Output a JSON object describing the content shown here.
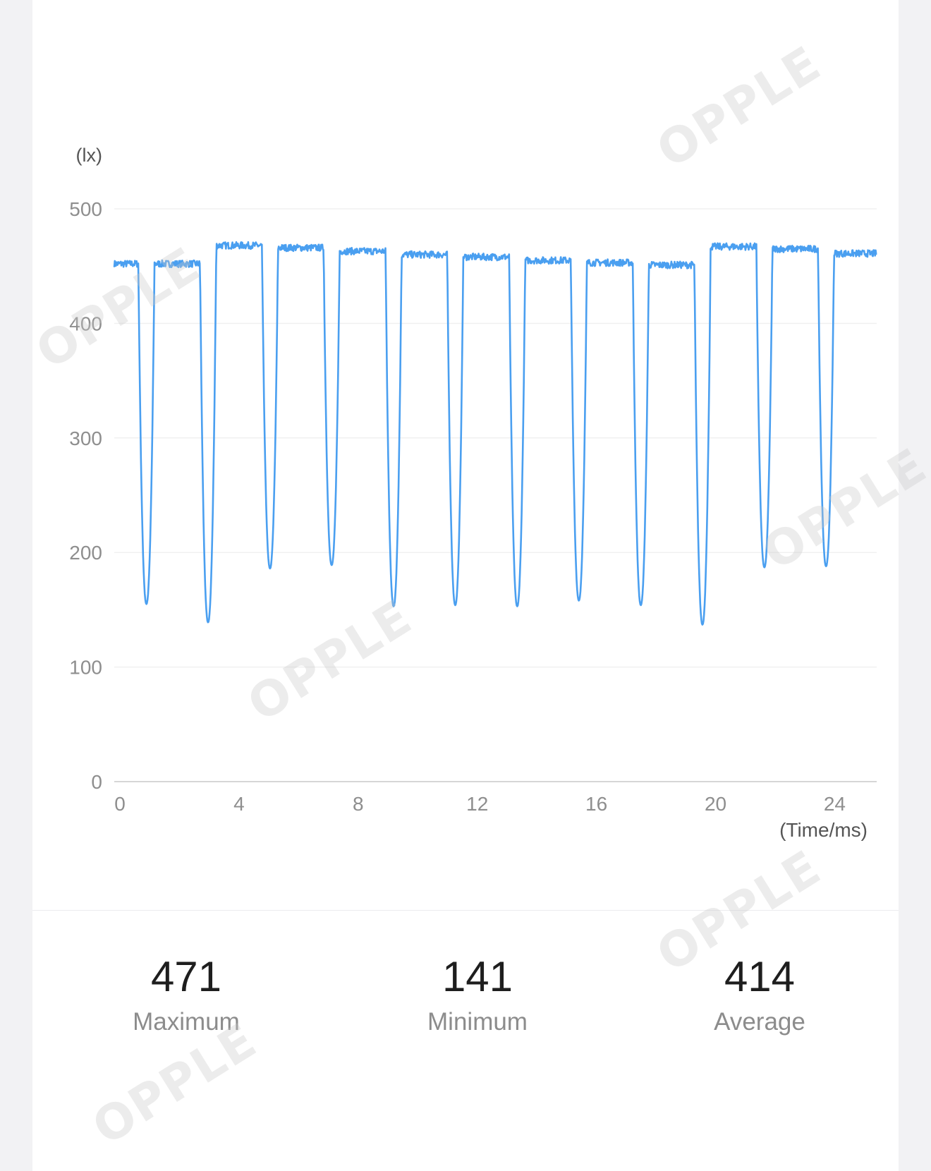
{
  "chart_data": {
    "type": "line",
    "y_unit_label": "(lx)",
    "x_unit_label": "(Time/ms)",
    "ylim": [
      0,
      500
    ],
    "xlim": [
      0,
      25.6
    ],
    "y_ticks": [
      0,
      100,
      200,
      300,
      400,
      500
    ],
    "x_ticks": [
      0,
      4,
      8,
      12,
      16,
      20,
      24
    ],
    "grid": true,
    "color": "#4a9ff0",
    "base_levels": [
      452,
      452,
      468,
      466,
      463,
      460,
      458,
      455,
      453,
      451,
      467,
      465,
      461
    ],
    "dips": [
      {
        "t": 1.08,
        "min": 155
      },
      {
        "t": 3.15,
        "min": 139
      },
      {
        "t": 5.23,
        "min": 186
      },
      {
        "t": 7.3,
        "min": 189
      },
      {
        "t": 9.38,
        "min": 153
      },
      {
        "t": 11.45,
        "min": 154
      },
      {
        "t": 13.53,
        "min": 153
      },
      {
        "t": 15.6,
        "min": 158
      },
      {
        "t": 17.68,
        "min": 154
      },
      {
        "t": 19.75,
        "min": 137
      },
      {
        "t": 21.83,
        "min": 187
      },
      {
        "t": 23.9,
        "min": 188
      }
    ]
  },
  "stats": {
    "maximum": {
      "value": "471",
      "label": "Maximum"
    },
    "minimum": {
      "value": "141",
      "label": "Minimum"
    },
    "average": {
      "value": "414",
      "label": "Average"
    }
  },
  "watermark_text": "OPPLE"
}
